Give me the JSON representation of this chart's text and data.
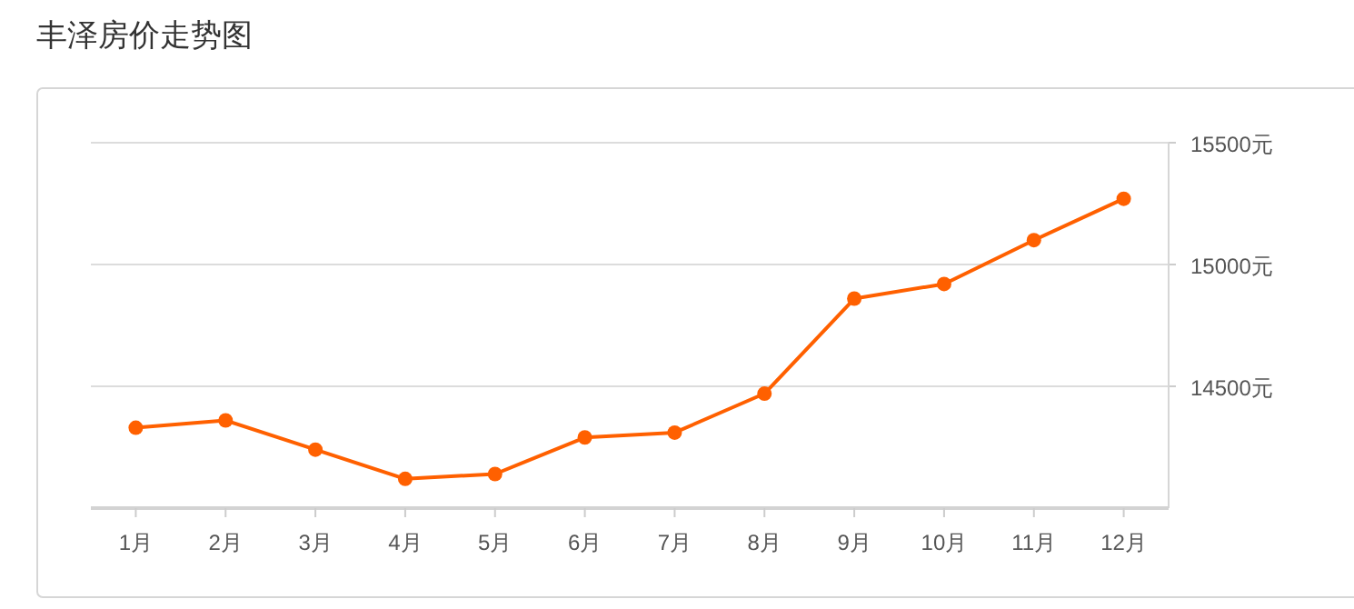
{
  "chart_data": {
    "type": "line",
    "title": "丰泽房价走势图",
    "categories": [
      "1月",
      "2月",
      "3月",
      "4月",
      "5月",
      "6月",
      "7月",
      "8月",
      "9月",
      "10月",
      "11月",
      "12月"
    ],
    "series": [
      {
        "color": "#ff6000",
        "values": [
          14330,
          14360,
          14240,
          14120,
          14140,
          14290,
          14310,
          14470,
          14860,
          14920,
          15100,
          15270
        ]
      }
    ],
    "ylim": [
      14000,
      15500
    ],
    "yticks": [
      {
        "value": 14500,
        "label": "14500元"
      },
      {
        "value": 15000,
        "label": "15000元"
      },
      {
        "value": 15500,
        "label": "15500元"
      }
    ],
    "grid": "y",
    "marker": "circle",
    "line_style": "solid"
  }
}
